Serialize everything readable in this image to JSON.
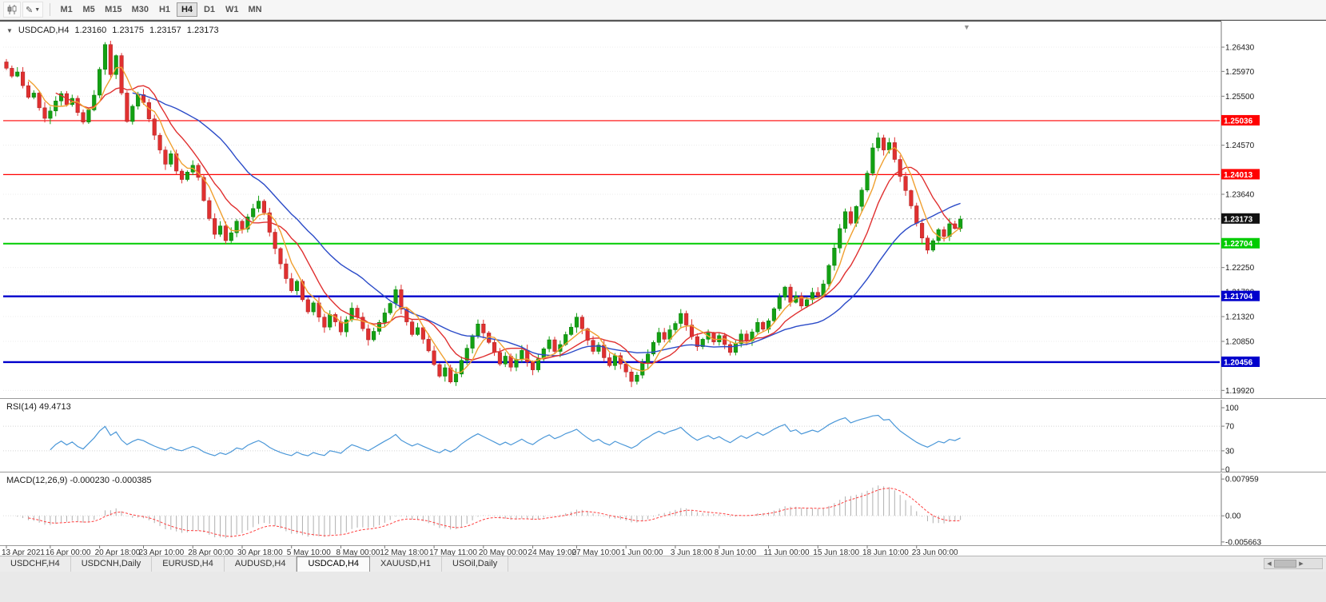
{
  "toolbar": {
    "timeframes": [
      {
        "label": "M1",
        "active": false
      },
      {
        "label": "M5",
        "active": false
      },
      {
        "label": "M15",
        "active": false
      },
      {
        "label": "M30",
        "active": false
      },
      {
        "label": "H1",
        "active": false
      },
      {
        "label": "H4",
        "active": true
      },
      {
        "label": "D1",
        "active": false
      },
      {
        "label": "W1",
        "active": false
      },
      {
        "label": "MN",
        "active": false
      }
    ]
  },
  "chart": {
    "header": {
      "collapse_icon": "▼",
      "title": "USDCAD,H4",
      "open": "1.23160",
      "high": "1.23175",
      "low": "1.23157",
      "close": "1.23173"
    },
    "rsi_label": "RSI(14) 49.4713",
    "macd_label": "MACD(12,26,9) -0.000230 -0.000385",
    "shift_marker_icon": "▼"
  },
  "chart_data": {
    "type": "candlestick",
    "symbol": "USDCAD",
    "timeframe": "H4",
    "current_bar": {
      "open": 1.2316,
      "high": 1.23175,
      "low": 1.23157,
      "close": 1.23173
    },
    "closes": [
      1.2603,
      1.2588,
      1.2596,
      1.257,
      1.2548,
      1.2556,
      1.2528,
      1.2508,
      1.2522,
      1.2541,
      1.2555,
      1.2534,
      1.2546,
      1.2519,
      1.2501,
      1.2524,
      1.2552,
      1.2601,
      1.2648,
      1.2591,
      1.2627,
      1.2556,
      1.2502,
      1.2531,
      1.2553,
      1.2538,
      1.2507,
      1.2476,
      1.2448,
      1.2421,
      1.2441,
      1.2408,
      1.2392,
      1.2406,
      1.2419,
      1.2396,
      1.2352,
      1.2318,
      1.2288,
      1.2304,
      1.2276,
      1.2291,
      1.2313,
      1.2298,
      1.2321,
      1.2337,
      1.2351,
      1.2329,
      1.2292,
      1.2261,
      1.2232,
      1.2204,
      1.2181,
      1.2199,
      1.2164,
      1.2141,
      1.2158,
      1.2131,
      1.2112,
      1.2136,
      1.2122,
      1.2103,
      1.2126,
      1.2148,
      1.2131,
      1.2109,
      1.2088,
      1.2104,
      1.2121,
      1.2139,
      1.2157,
      1.2183,
      1.2146,
      1.2122,
      1.2098,
      1.2111,
      1.2089,
      1.2067,
      1.2041,
      1.2019,
      1.2035,
      1.2008,
      1.2023,
      1.2049,
      1.2072,
      1.2096,
      1.2118,
      1.2101,
      1.2083,
      1.2064,
      1.2042,
      1.2057,
      1.2036,
      1.2051,
      1.2068,
      1.2046,
      1.2031,
      1.2052,
      1.2071,
      1.2088,
      1.2066,
      1.2079,
      1.2098,
      1.2112,
      1.2131,
      1.2109,
      1.2087,
      1.2066,
      1.2078,
      1.2054,
      1.2039,
      1.2058,
      1.2042,
      1.2027,
      1.2009,
      1.2021,
      1.2044,
      1.2061,
      1.2083,
      1.2102,
      1.2089,
      1.2107,
      1.2119,
      1.2138,
      1.2116,
      1.2094,
      1.2075,
      1.2089,
      1.2101,
      1.2084,
      1.2096,
      1.2079,
      1.2064,
      1.2081,
      1.2099,
      1.2086,
      1.2103,
      1.2121,
      1.2108,
      1.2124,
      1.2147,
      1.2169,
      1.2188,
      1.2159,
      1.2171,
      1.2152,
      1.2164,
      1.2178,
      1.2171,
      1.2194,
      1.2229,
      1.2262,
      1.2299,
      1.2331,
      1.2309,
      1.2341,
      1.2372,
      1.2404,
      1.2452,
      1.2471,
      1.2448,
      1.2462,
      1.243,
      1.2398,
      1.2371,
      1.2342,
      1.2309,
      1.2281,
      1.2258,
      1.2276,
      1.2297,
      1.2284,
      1.2308,
      1.2299,
      1.2317
    ],
    "colors": {
      "up": "#13a113",
      "down": "#e03030",
      "up_border": "#0a7a0a",
      "down_border": "#a82424",
      "grid": "#ececec",
      "axis_text": "#1a1a1a",
      "background": "#ffffff"
    },
    "price_axis": {
      "ticks": [
        "1.26430",
        "1.25970",
        "1.25500",
        "1.24570",
        "1.23640",
        "1.22250",
        "1.21790",
        "1.21320",
        "1.20850",
        "1.19920"
      ]
    },
    "levels": [
      {
        "value": 1.25036,
        "label": "1.25036",
        "color": "#ff0000",
        "width": 1.2
      },
      {
        "value": 1.24013,
        "label": "1.24013",
        "color": "#ff0000",
        "width": 1.2
      },
      {
        "value": 1.22704,
        "label": "1.22704",
        "color": "#00cc00",
        "width": 2
      },
      {
        "value": 1.21704,
        "label": "1.21704",
        "color": "#0000cc",
        "width": 2.4
      },
      {
        "value": 1.20456,
        "label": "1.20456",
        "color": "#0000cc",
        "width": 2.4
      }
    ],
    "current_price": {
      "value": 1.23173,
      "label": "1.23173",
      "color": "#111111"
    },
    "moving_averages": [
      {
        "name": "slow-ma",
        "color": "#2b4bc8"
      },
      {
        "name": "mid-ma",
        "color": "#e03030"
      },
      {
        "name": "fast-ma",
        "color": "#f0a030"
      }
    ],
    "time_axis": [
      {
        "label": "13 Apr 2021",
        "index": 0
      },
      {
        "label": "16 Apr 00:00",
        "index": 8
      },
      {
        "label": "20 Apr 18:00",
        "index": 17
      },
      {
        "label": "23 Apr 10:00",
        "index": 25
      },
      {
        "label": "28 Apr 00:00",
        "index": 34
      },
      {
        "label": "30 Apr 18:00",
        "index": 43
      },
      {
        "label": "5 May 10:00",
        "index": 52
      },
      {
        "label": "8 May 00:00",
        "index": 61
      },
      {
        "label": "12 May 18:00",
        "index": 69
      },
      {
        "label": "17 May 11:00",
        "index": 78
      },
      {
        "label": "20 May 00:00",
        "index": 87
      },
      {
        "label": "24 May 19:00",
        "index": 96
      },
      {
        "label": "27 May 10:00",
        "index": 104
      },
      {
        "label": "1 Jun 00:00",
        "index": 113
      },
      {
        "label": "3 Jun 18:00",
        "index": 122
      },
      {
        "label": "8 Jun 10:00",
        "index": 130
      },
      {
        "label": "11 Jun 00:00",
        "index": 139
      },
      {
        "label": "15 Jun 18:00",
        "index": 148
      },
      {
        "label": "18 Jun 10:00",
        "index": 157
      },
      {
        "label": "23 Jun 00:00",
        "index": 166
      }
    ],
    "rsi": {
      "value": 49.4713,
      "color": "#4a97d8",
      "levels": [
        30,
        70
      ],
      "axis_ticks": [
        100,
        70,
        30,
        0
      ]
    },
    "macd": {
      "values": [
        -0.00023,
        -0.000385
      ],
      "hist_color": "#b0b0b0",
      "signal_color": "#ff3c3c",
      "axis_ticks": [
        {
          "v": 0.007959,
          "label": "0.007959"
        },
        {
          "v": 0,
          "label": "0.00"
        },
        {
          "v": -0.005663,
          "label": "-0.005663"
        }
      ]
    }
  },
  "tabs": {
    "items": [
      {
        "label": "USDCHF,H4",
        "active": false
      },
      {
        "label": "USDCNH,Daily",
        "active": false
      },
      {
        "label": "EURUSD,H4",
        "active": false
      },
      {
        "label": "AUDUSD,H4",
        "active": false
      },
      {
        "label": "USDCAD,H4",
        "active": true
      },
      {
        "label": "XAUUSD,H1",
        "active": false
      },
      {
        "label": "USOil,Daily",
        "active": false
      }
    ]
  }
}
